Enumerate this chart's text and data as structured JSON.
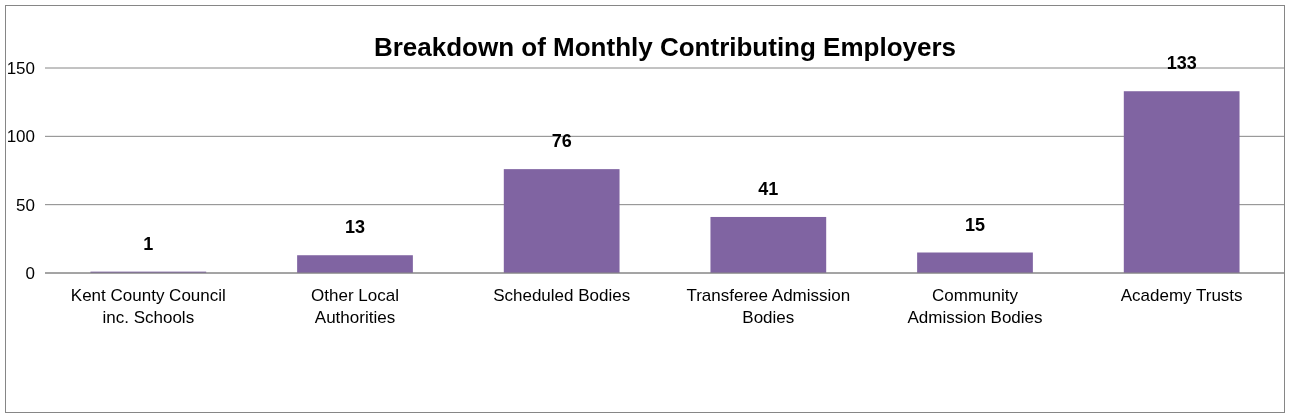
{
  "chart_data": {
    "type": "bar",
    "title": "Breakdown of Monthly Contributing Employers",
    "categories": [
      "Kent County Council inc. Schools",
      "Other Local Authorities",
      "Scheduled Bodies",
      "Transferee Admission Bodies",
      "Community Admission Bodies",
      "Academy Trusts"
    ],
    "values": [
      1,
      13,
      76,
      41,
      15,
      133
    ],
    "color": "#8064a2",
    "ylim": [
      0,
      150
    ],
    "yticks": [
      0,
      50,
      100,
      150
    ],
    "grid": "y",
    "data_labels": true
  }
}
